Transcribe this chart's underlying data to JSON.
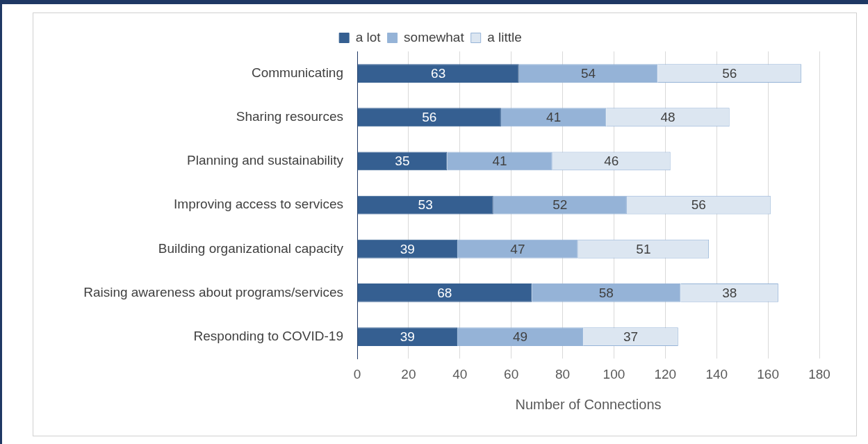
{
  "chart_data": {
    "type": "bar",
    "orientation": "horizontal",
    "stacked": true,
    "xlabel": "Number of Connections",
    "categories": [
      "Communicating",
      "Sharing resources",
      "Planning and sustainability",
      "Improving access to services",
      "Building organizational capacity",
      "Raising awareness about programs/services",
      "Responding to COVID-19"
    ],
    "series": [
      {
        "name": "a lot",
        "color": "#355f91",
        "values": [
          63,
          56,
          35,
          53,
          39,
          68,
          39
        ]
      },
      {
        "name": "somewhat",
        "color": "#95b3d7",
        "values": [
          54,
          41,
          41,
          52,
          47,
          58,
          49
        ]
      },
      {
        "name": "a little",
        "color": "#dce6f1",
        "values": [
          56,
          48,
          46,
          56,
          51,
          38,
          37
        ]
      }
    ],
    "xlim": [
      0,
      180
    ],
    "xticks": [
      0,
      20,
      40,
      60,
      80,
      100,
      120,
      140,
      160,
      180
    ],
    "grid": "x",
    "legend": "top",
    "data_labels": true
  }
}
